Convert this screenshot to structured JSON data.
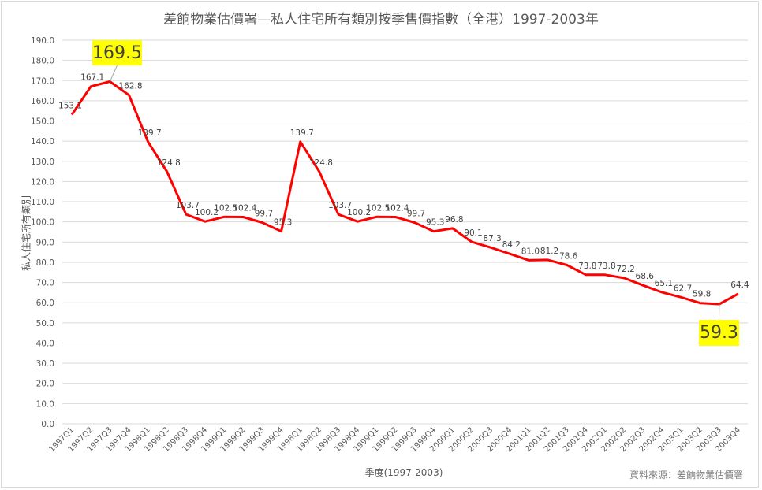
{
  "chart_data": {
    "type": "line",
    "title": "差餉物業估價署—私人住宅所有類別按季售價指數（全港）1997-2003年",
    "xlabel": "季度(1997-2003)",
    "ylabel": "私人住宅所有類別",
    "source_note": "資料來源：差餉物業估價署",
    "ylim": [
      0,
      190
    ],
    "ytick_step": 10,
    "yticks": [
      "0.0",
      "10.0",
      "20.0",
      "30.0",
      "40.0",
      "50.0",
      "60.0",
      "70.0",
      "80.0",
      "90.0",
      "100.0",
      "110.0",
      "120.0",
      "130.0",
      "140.0",
      "150.0",
      "160.0",
      "170.0",
      "180.0",
      "190.0"
    ],
    "grid": true,
    "legend": "none",
    "line_color": "#ff0000",
    "categories": [
      "1997Q1",
      "1997Q2",
      "1997Q3",
      "1997Q4",
      "1998Q1",
      "1998Q2",
      "1998Q3",
      "1998Q4",
      "1999Q1",
      "1999Q2",
      "1999Q3",
      "1999Q4",
      "1998Q1",
      "1998Q2",
      "1998Q3",
      "1998Q4",
      "1999Q1",
      "1999Q2",
      "1999Q3",
      "1999Q4",
      "2000Q1",
      "2000Q2",
      "2000Q3",
      "2000Q4",
      "2001Q1",
      "2001Q2",
      "2001Q3",
      "2001Q4",
      "2002Q1",
      "2002Q2",
      "2002Q3",
      "2002Q4",
      "2003Q1",
      "2003Q2",
      "2003Q3",
      "2003Q4"
    ],
    "series": [
      {
        "name": "私人住宅所有類別",
        "values": [
          153.1,
          167.1,
          169.5,
          162.8,
          139.7,
          124.8,
          103.7,
          100.2,
          102.5,
          102.4,
          99.7,
          95.3,
          139.7,
          124.8,
          103.7,
          100.2,
          102.5,
          102.4,
          99.7,
          95.3,
          96.8,
          90.1,
          87.3,
          84.2,
          81.0,
          81.2,
          78.6,
          73.8,
          73.8,
          72.2,
          68.6,
          65.1,
          62.7,
          59.8,
          59.3,
          64.4
        ]
      }
    ],
    "annotations": [
      {
        "text": "169.5",
        "category_index": 2,
        "note": "peak",
        "highlight": "#ffff00"
      },
      {
        "text": "59.3",
        "category_index": 34,
        "note": "trough",
        "highlight": "#ffff00"
      }
    ]
  }
}
